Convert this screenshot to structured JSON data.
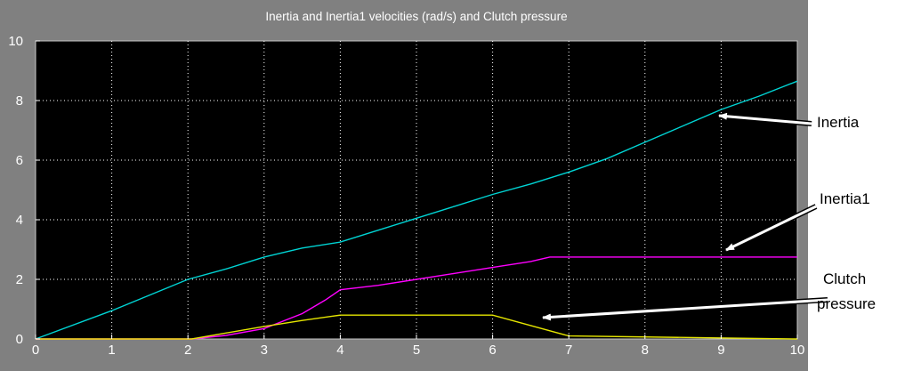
{
  "chart_data": {
    "type": "line",
    "title": "Inertia and Inertia1  velocities (rad/s) and Clutch pressure",
    "xlim": [
      0,
      10
    ],
    "ylim": [
      0,
      10
    ],
    "xticks": [
      0,
      1,
      2,
      3,
      4,
      5,
      6,
      7,
      8,
      9,
      10
    ],
    "yticks": [
      0,
      2,
      4,
      6,
      8,
      10
    ],
    "grid": true,
    "background_color": "#000000",
    "frame_color": "#808080",
    "series": [
      {
        "name": "Inertia",
        "color": "#00d4d4",
        "x": [
          0,
          1,
          2,
          2.5,
          3,
          3.5,
          4,
          4.5,
          5,
          5.5,
          6,
          6.5,
          7,
          7.5,
          8,
          8.5,
          9,
          9.5,
          10
        ],
        "y": [
          0,
          0.95,
          2.0,
          2.35,
          2.75,
          3.05,
          3.25,
          3.65,
          4.05,
          4.45,
          4.85,
          5.2,
          5.6,
          6.05,
          6.6,
          7.15,
          7.7,
          8.15,
          8.65
        ]
      },
      {
        "name": "Inertia1",
        "color": "#ff00ff",
        "x": [
          0,
          2.05,
          2.5,
          3.0,
          3.5,
          3.8,
          4.0,
          4.5,
          5.0,
          5.5,
          6.0,
          6.5,
          6.75,
          8,
          10
        ],
        "y": [
          0,
          0,
          0.12,
          0.35,
          0.85,
          1.3,
          1.65,
          1.8,
          2.0,
          2.2,
          2.4,
          2.6,
          2.75,
          2.75,
          2.75
        ]
      },
      {
        "name": "Clutch pressure",
        "color": "#e6e600",
        "x": [
          0,
          2.05,
          2.5,
          3.0,
          3.5,
          3.85,
          4.0,
          6.0,
          6.5,
          7.0,
          10
        ],
        "y": [
          0,
          0,
          0.2,
          0.42,
          0.62,
          0.75,
          0.8,
          0.8,
          0.45,
          0.1,
          0
        ]
      }
    ]
  },
  "annotations": [
    {
      "text": "Inertia"
    },
    {
      "text": "Inertia1"
    },
    {
      "text": "Clutch"
    },
    {
      "text": "pressure"
    }
  ]
}
